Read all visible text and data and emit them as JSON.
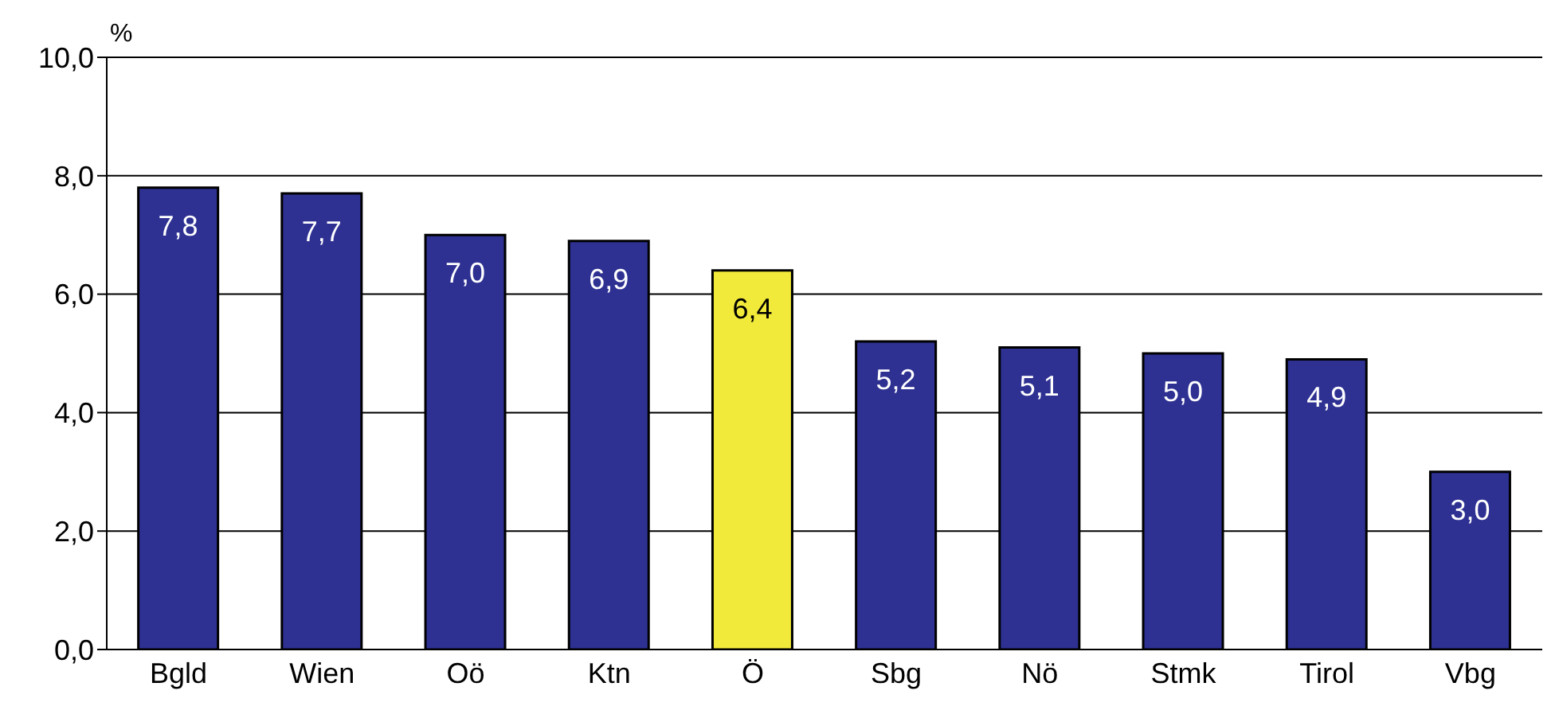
{
  "chart_data": {
    "type": "bar",
    "ylabel": "%",
    "categories": [
      "Bgld",
      "Wien",
      "Oö",
      "Ktn",
      "Ö",
      "Sbg",
      "Nö",
      "Stmk",
      "Tirol",
      "Vbg"
    ],
    "values": [
      7.8,
      7.7,
      7.0,
      6.9,
      6.4,
      5.2,
      5.1,
      5.0,
      4.9,
      3.0
    ],
    "colors": [
      "#2e3192",
      "#2e3192",
      "#2e3192",
      "#2e3192",
      "#f2ea3a",
      "#2e3192",
      "#2e3192",
      "#2e3192",
      "#2e3192",
      "#2e3192"
    ],
    "value_labels": [
      "7,8",
      "7,7",
      "7,0",
      "6,9",
      "6,4",
      "5,2",
      "5,1",
      "5,0",
      "4,9",
      "3,0"
    ],
    "ylim": [
      0,
      10
    ],
    "yticks": [
      {
        "value": 0,
        "label": "0,0"
      },
      {
        "value": 2,
        "label": "2,0"
      },
      {
        "value": 4,
        "label": "4,0"
      },
      {
        "value": 6,
        "label": "6,0"
      },
      {
        "value": 8,
        "label": "8,0"
      },
      {
        "value": 10,
        "label": "10,0"
      }
    ],
    "grid": "y"
  }
}
